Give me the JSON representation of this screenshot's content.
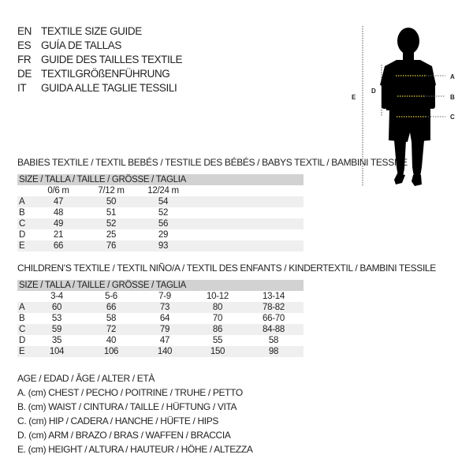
{
  "header": [
    {
      "code": "EN",
      "text": "TEXTILE SIZE GUIDE"
    },
    {
      "code": "ES",
      "text": "GUÍA DE TALLAS"
    },
    {
      "code": "FR",
      "text": "GUIDE DES TAILLES TEXTILE"
    },
    {
      "code": "DE",
      "text": "TEXTILGRÖßENFÜHRUNG"
    },
    {
      "code": "IT",
      "text": "GUIDA ALLE TAGLIE TESSILI"
    }
  ],
  "babies": {
    "title": "BABIES TEXTILE / TEXTIL BEBÉS / TESTILE DES BÉBÉS / BABYS TEXTIL / BAMBINI TESSILE",
    "size_header": "SIZE / TALLA / TAILLE / GRÖSSE / TAGLIA",
    "columns": [
      "0/6 m",
      "7/12 m",
      "12/24 m"
    ],
    "rows": [
      {
        "label": "A",
        "values": [
          "47",
          "50",
          "54"
        ]
      },
      {
        "label": "B",
        "values": [
          "48",
          "51",
          "52"
        ]
      },
      {
        "label": "C",
        "values": [
          "49",
          "52",
          "56"
        ]
      },
      {
        "label": "D",
        "values": [
          "21",
          "25",
          "29"
        ]
      },
      {
        "label": "E",
        "values": [
          "66",
          "76",
          "93"
        ]
      }
    ]
  },
  "children": {
    "title": "CHILDREN’S TEXTILE / TEXTIL NIÑO/A / TEXTIL DES ENFANTS / KINDERTEXTIL / BAMBINI TESSILE",
    "size_header": "SIZE / TALLA / TAILLE / GRÖSSE / TAGLIA",
    "columns": [
      "3-4",
      "5-6",
      "7-9",
      "10-12",
      "13-14"
    ],
    "rows": [
      {
        "label": "A",
        "values": [
          "60",
          "66",
          "73",
          "80",
          "78-82"
        ]
      },
      {
        "label": "B",
        "values": [
          "53",
          "58",
          "64",
          "70",
          "66-70"
        ]
      },
      {
        "label": "C",
        "values": [
          "59",
          "72",
          "79",
          "86",
          "84-88"
        ]
      },
      {
        "label": "D",
        "values": [
          "35",
          "40",
          "47",
          "55",
          "58"
        ]
      },
      {
        "label": "E",
        "values": [
          "104",
          "106",
          "140",
          "150",
          "98"
        ]
      }
    ]
  },
  "legend": [
    "AGE / EDAD / ÂGE / ALTER / ETÀ",
    "A. (cm) CHEST / PECHO / POITRINE / TRUHE / PETTO",
    "B. (cm) WAIST / CINTURA / TAILLE / HÜFTUNG / VITA",
    "C. (cm) HIP / CADERA / HANCHE / HÜFTE / HIPS",
    "D. (cm) ARM / BRAZO / BRAS / WAFFEN / BRACCIA",
    "E. (cm) HEIGHT / ALTURA / HAUTEUR / HÖHE / ALTEZZA"
  ],
  "figure": {
    "labels": {
      "a": "A",
      "b": "B",
      "c": "C",
      "d": "D",
      "e": "E"
    },
    "measure_color": "#e8d23a",
    "silhouette_color": "#000000"
  }
}
